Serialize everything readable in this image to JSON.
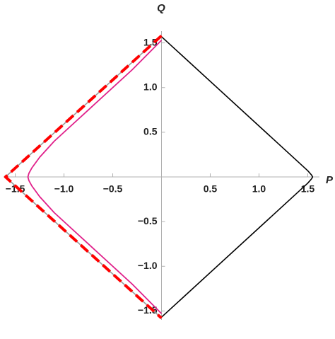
{
  "chart_data": {
    "type": "line",
    "x_label": "P",
    "y_label": "Q",
    "xlim": [
      -1.62,
      1.62
    ],
    "ylim": [
      -1.6,
      1.6
    ],
    "xticks": [
      {
        "value": -1.5,
        "label": "−1.5"
      },
      {
        "value": -1,
        "label": "−1.0"
      },
      {
        "value": -0.5,
        "label": "−0.5"
      },
      0.5,
      {
        "value": 1,
        "label": "1.0"
      },
      1.5
    ],
    "yticks": [
      {
        "value": -1.5,
        "label": "−1.5"
      },
      {
        "value": -1,
        "label": "−1.0"
      },
      {
        "value": -0.5,
        "label": "−0.5"
      },
      0.5,
      {
        "value": 1,
        "label": "1.0"
      },
      1.5
    ],
    "series": [
      {
        "color": "#000000",
        "width": 1.6,
        "dashed": false,
        "x": [
          0,
          1.5,
          1.54,
          1.55,
          1.54,
          1.5,
          0
        ],
        "values": [
          1.57,
          0.07,
          0.02,
          0,
          -0.02,
          -0.07,
          -1.57
        ]
      },
      {
        "color": "#999999",
        "width": 1.6,
        "dashed": false,
        "x": [
          0,
          -1.6,
          0
        ],
        "values": [
          1.58,
          0,
          -1.58
        ]
      },
      {
        "color": "#ff0000",
        "width": 4,
        "dashed": true,
        "x": [
          0,
          -1.6,
          0
        ],
        "values": [
          1.58,
          0,
          -1.58
        ]
      },
      {
        "color": "#e0208a",
        "width": 1.8,
        "dashed": false,
        "x": [
          0,
          -0.3,
          -0.6,
          -0.9,
          -1.1,
          -1.25,
          -1.33,
          -1.36,
          -1.37,
          -1.36,
          -1.33,
          -1.25,
          -1.1,
          -0.9,
          -0.6,
          -0.3,
          0
        ],
        "values": [
          1.53,
          1.2,
          0.9,
          0.6,
          0.4,
          0.22,
          0.1,
          0.04,
          0,
          -0.04,
          -0.1,
          -0.22,
          -0.4,
          -0.6,
          -0.9,
          -1.2,
          -1.53
        ]
      }
    ]
  }
}
